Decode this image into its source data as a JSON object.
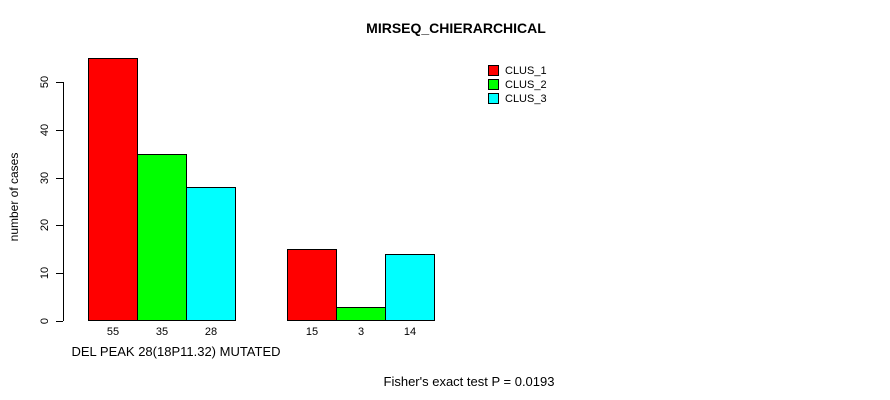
{
  "chart_data": {
    "type": "bar",
    "title": "MIRSEQ_CHIERARCHICAL",
    "ylabel": "number of cases",
    "xlabel": "DEL PEAK 28(18P11.32) MUTATED",
    "annotation": "Fisher's exact test P = 0.0193",
    "ylim": [
      0,
      55
    ],
    "yticks": [
      0,
      10,
      20,
      30,
      40,
      50
    ],
    "grid": false,
    "legend_position": "top-right",
    "group_count": 2,
    "series": [
      {
        "name": "CLUS_1",
        "color": "#ff0000",
        "values": [
          55,
          15
        ]
      },
      {
        "name": "CLUS_2",
        "color": "#00ff00",
        "values": [
          35,
          3
        ]
      },
      {
        "name": "CLUS_3",
        "color": "#00ffff",
        "values": [
          28,
          14
        ]
      }
    ],
    "bar_value_labels": [
      [
        "55",
        "35",
        "28"
      ],
      [
        "15",
        "3",
        "14"
      ]
    ],
    "colors": {
      "background": "#ffffff",
      "axis": "#000000",
      "text": "#000000"
    }
  }
}
